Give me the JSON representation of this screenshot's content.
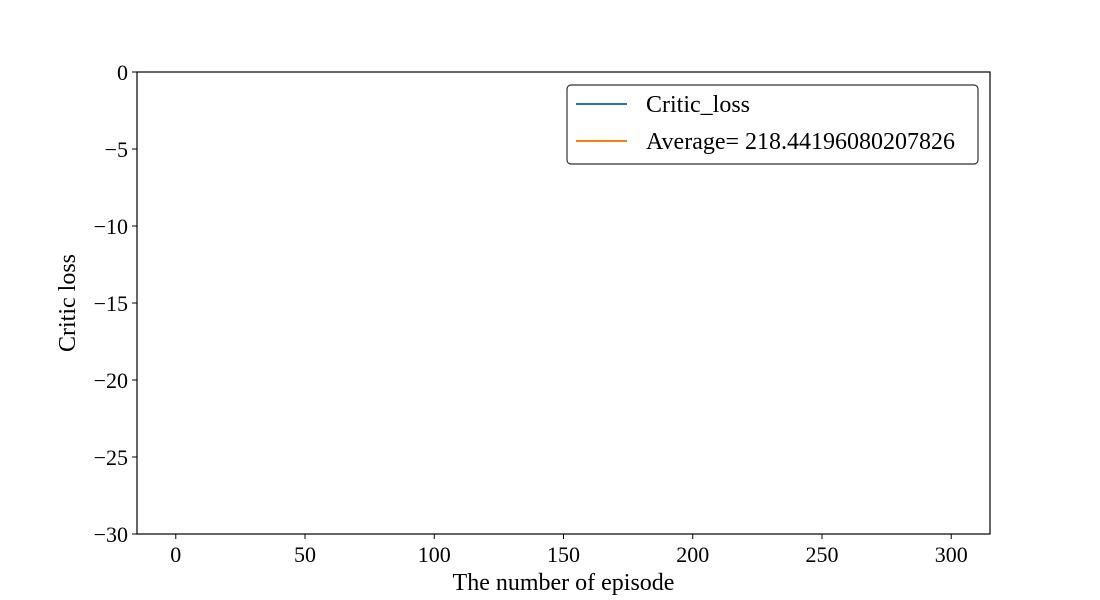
{
  "chart_data": {
    "type": "line",
    "title": "",
    "xlabel": "The number of episode",
    "ylabel": "Critic loss",
    "xlim": [
      -15,
      315
    ],
    "ylim": [
      -30,
      0
    ],
    "x_ticks": [
      0,
      50,
      100,
      150,
      200,
      250,
      300
    ],
    "y_ticks": [
      0,
      -5,
      -10,
      -15,
      -20,
      -25,
      -30
    ],
    "x_tick_labels": [
      "0",
      "50",
      "100",
      "150",
      "200",
      "250",
      "300"
    ],
    "y_tick_labels": [
      "0",
      "−5",
      "−10",
      "−15",
      "−20",
      "−25",
      "−30"
    ],
    "grid": false,
    "legend_position": "top-right",
    "series": [
      {
        "name": "Critic_loss",
        "color": "#1f77b4",
        "x": [],
        "y": []
      },
      {
        "name": "Average= 218.44196080207826",
        "color": "#ff7f0e",
        "x": [],
        "y": []
      }
    ]
  }
}
